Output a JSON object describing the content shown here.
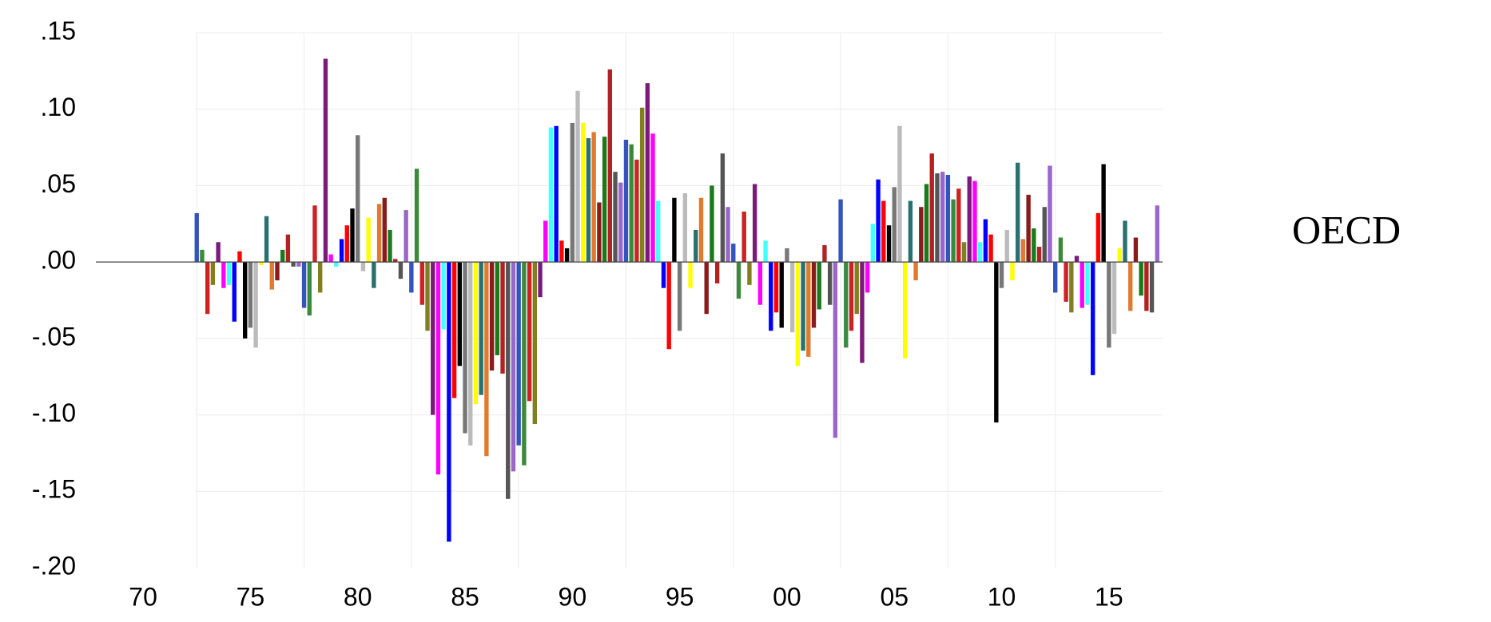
{
  "chart_data": {
    "type": "bar",
    "annotation": "OECD",
    "x": [
      1972.5,
      1972.75,
      1973,
      1973.25,
      1973.5,
      1973.75,
      1974,
      1974.25,
      1974.5,
      1974.75,
      1975,
      1975.25,
      1975.5,
      1975.75,
      1976,
      1976.25,
      1976.5,
      1976.75,
      1977,
      1977.25,
      1977.5,
      1977.75,
      1978,
      1978.25,
      1978.5,
      1978.75,
      1979,
      1979.25,
      1979.5,
      1979.75,
      1980,
      1980.25,
      1980.5,
      1980.75,
      1981,
      1981.25,
      1981.5,
      1981.75,
      1982,
      1982.25,
      1982.5,
      1982.75,
      1983,
      1983.25,
      1983.5,
      1983.75,
      1984,
      1984.25,
      1984.5,
      1984.75,
      1985,
      1985.25,
      1985.5,
      1985.75,
      1986,
      1986.25,
      1986.5,
      1986.75,
      1987,
      1987.25,
      1987.5,
      1987.75,
      1988,
      1988.25,
      1988.5,
      1988.75,
      1989,
      1989.25,
      1989.5,
      1989.75,
      1990,
      1990.25,
      1990.5,
      1990.75,
      1991,
      1991.25,
      1991.5,
      1991.75,
      1992,
      1992.25,
      1992.5,
      1992.75,
      1993,
      1993.25,
      1993.5,
      1993.75,
      1994,
      1994.25,
      1994.5,
      1994.75,
      1995,
      1995.25,
      1995.5,
      1995.75,
      1996,
      1996.25,
      1996.5,
      1996.75,
      1997,
      1997.25,
      1997.5,
      1997.75,
      1998,
      1998.25,
      1998.5,
      1998.75,
      1999,
      1999.25,
      1999.5,
      1999.75,
      2000,
      2000.25,
      2000.5,
      2000.75,
      2001,
      2001.25,
      2001.5,
      2001.75,
      2002,
      2002.25,
      2002.5,
      2002.75,
      2003,
      2003.25,
      2003.5,
      2003.75,
      2004,
      2004.25,
      2004.5,
      2004.75,
      2005,
      2005.25,
      2005.5,
      2005.75,
      2006,
      2006.25,
      2006.5,
      2006.75,
      2007,
      2007.25,
      2007.5,
      2007.75,
      2008,
      2008.25,
      2008.5,
      2008.75,
      2009,
      2009.25,
      2009.5,
      2009.75,
      2010,
      2010.25,
      2010.5,
      2010.75,
      2011,
      2011.25,
      2011.5,
      2011.75,
      2012,
      2012.25,
      2012.5,
      2012.75,
      2013,
      2013.25,
      2013.5,
      2013.75,
      2014,
      2014.25,
      2014.5,
      2014.75,
      2015,
      2015.25,
      2015.5,
      2015.75,
      2016,
      2016.25,
      2016.5,
      2016.75,
      2017,
      2017.25
    ],
    "values": [
      0.032,
      0.008,
      -0.034,
      -0.015,
      0.013,
      -0.017,
      -0.015,
      -0.039,
      0.007,
      -0.05,
      -0.043,
      -0.056,
      -0.002,
      0.03,
      -0.018,
      -0.012,
      0.008,
      0.018,
      -0.003,
      -0.003,
      -0.03,
      -0.035,
      0.037,
      -0.02,
      0.133,
      0.005,
      -0.003,
      0.015,
      0.024,
      0.035,
      0.083,
      -0.006,
      0.029,
      -0.017,
      0.038,
      0.042,
      0.021,
      0.002,
      -0.011,
      0.034,
      -0.02,
      0.061,
      -0.028,
      -0.045,
      -0.1,
      -0.139,
      -0.044,
      -0.183,
      -0.089,
      -0.068,
      -0.112,
      -0.12,
      -0.093,
      -0.087,
      -0.127,
      -0.071,
      -0.061,
      -0.073,
      -0.155,
      -0.137,
      -0.12,
      -0.133,
      -0.091,
      -0.106,
      -0.023,
      0.027,
      0.088,
      0.089,
      0.014,
      0.009,
      0.091,
      0.112,
      0.091,
      0.081,
      0.085,
      0.039,
      0.082,
      0.126,
      0.059,
      0.052,
      0.08,
      0.077,
      0.067,
      0.101,
      0.117,
      0.084,
      0.04,
      -0.017,
      -0.057,
      0.042,
      -0.045,
      0.045,
      -0.017,
      0.021,
      0.042,
      -0.034,
      0.05,
      -0.014,
      0.071,
      0.036,
      0.012,
      -0.024,
      0.033,
      -0.015,
      0.051,
      -0.028,
      0.014,
      -0.045,
      -0.033,
      -0.043,
      0.009,
      -0.046,
      -0.068,
      -0.058,
      -0.062,
      -0.043,
      -0.031,
      0.011,
      -0.028,
      -0.115,
      0.041,
      -0.056,
      -0.045,
      -0.034,
      -0.066,
      -0.02,
      0.025,
      0.054,
      0.04,
      0.024,
      0.049,
      0.089,
      -0.063,
      0.04,
      -0.012,
      0.036,
      0.051,
      0.071,
      0.058,
      0.059,
      0.057,
      0.041,
      0.048,
      0.013,
      0.056,
      0.053,
      0.013,
      0.028,
      0.018,
      -0.105,
      -0.017,
      0.021,
      -0.012,
      0.065,
      0.015,
      0.044,
      0.022,
      0.01,
      0.036,
      0.063,
      -0.02,
      0.016,
      -0.026,
      -0.033,
      0.004,
      -0.03,
      -0.028,
      -0.074,
      0.032,
      0.064,
      -0.056,
      -0.047,
      0.009,
      0.027,
      -0.032,
      0.016,
      -0.022,
      -0.032,
      -0.033,
      0.037
    ],
    "colors": [
      "#3355bb",
      "#3a8a3a",
      "#cc2222",
      "#808020",
      "#7a1a7a",
      "#ff00ff",
      "#44ffff",
      "#0000ff",
      "#ff0000",
      "#000000",
      "#777777",
      "#bbbbbb",
      "#ffff00",
      "#2a7070",
      "#e07a30",
      "#8b1a1a",
      "#1a7a1a",
      "#b22222",
      "#555555",
      "#9966cc"
    ],
    "xlim": [
      1967.8,
      2017.5
    ],
    "ylim": [
      -0.2,
      0.15
    ],
    "xticks": [
      {
        "value": 1970,
        "label": "70"
      },
      {
        "value": 1975,
        "label": "75"
      },
      {
        "value": 1980,
        "label": "80"
      },
      {
        "value": 1985,
        "label": "85"
      },
      {
        "value": 1990,
        "label": "90"
      },
      {
        "value": 1995,
        "label": "95"
      },
      {
        "value": 2000,
        "label": "00"
      },
      {
        "value": 2005,
        "label": "05"
      },
      {
        "value": 2010,
        "label": "10"
      },
      {
        "value": 2015,
        "label": "15"
      }
    ],
    "yticks": [
      {
        "value": -0.2,
        "label": "-.20"
      },
      {
        "value": -0.15,
        "label": "-.15"
      },
      {
        "value": -0.1,
        "label": "-.10"
      },
      {
        "value": -0.05,
        "label": "-.05"
      },
      {
        "value": 0,
        "label": ".00"
      },
      {
        "value": 0.05,
        "label": ".05"
      },
      {
        "value": 0.1,
        "label": ".10"
      },
      {
        "value": 0.15,
        "label": ".15"
      }
    ],
    "grid": true
  }
}
